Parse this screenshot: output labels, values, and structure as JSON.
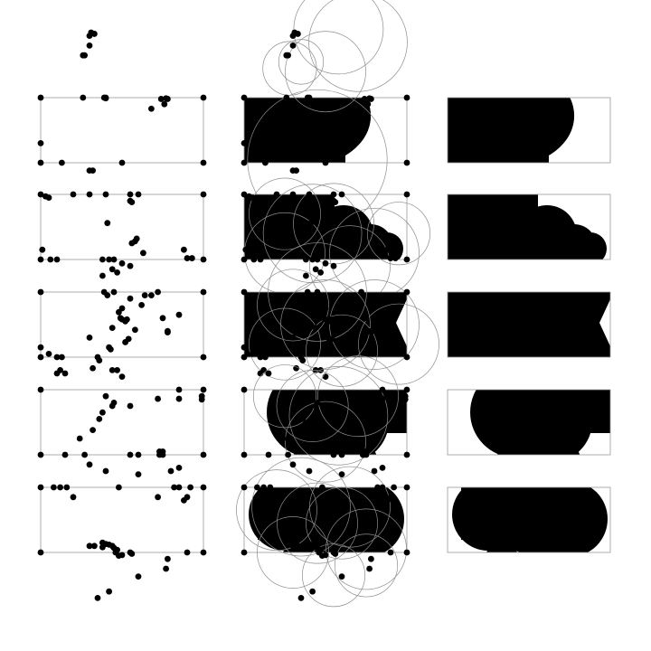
{
  "figure": {
    "colors": {
      "background": "#ffffff",
      "ink": "#000000",
      "outline": "#999999",
      "circle": "#8c8c8c"
    },
    "columns": [
      {
        "name": "scattered-points"
      },
      {
        "name": "circle-construction"
      },
      {
        "name": "filled-union"
      }
    ],
    "rows": [
      {
        "id": "row-1",
        "clip": [
          [
            [
              0.18,
              0
            ],
            [
              0.6,
              0.35
            ],
            [
              0.25,
              0.5
            ]
          ]
        ],
        "circles": [
          [
            0.45,
            0.95,
            0.78
          ],
          [
            0.5,
            -0.4,
            0.45
          ],
          [
            0.58,
            -1.05,
            0.5
          ],
          [
            0.7,
            -0.85,
            0.55
          ],
          [
            0.35,
            -0.55,
            0.25
          ],
          [
            0.28,
            -0.45,
            0.3
          ]
        ],
        "dots": [
          [
            0.3,
            -0.95
          ],
          [
            0.33,
            -0.98
          ],
          [
            0.31,
            -1.0
          ],
          [
            0.3,
            -0.8
          ],
          [
            0.27,
            -0.65
          ],
          [
            0.26,
            -0.65
          ],
          [
            0,
            0
          ],
          [
            1,
            0
          ],
          [
            0,
            1
          ],
          [
            1,
            1
          ],
          [
            0,
            0.7
          ],
          [
            0.26,
            0
          ],
          [
            0.39,
            0
          ],
          [
            0.4,
            0
          ],
          [
            0.4,
            0.01
          ],
          [
            0.74,
            0.02
          ],
          [
            0.78,
            0.02
          ],
          [
            0.76,
            0.1
          ],
          [
            0.77,
            0.01
          ],
          [
            0.68,
            0.17
          ],
          [
            0.13,
            1
          ],
          [
            0.5,
            1
          ],
          [
            0.3,
            1.12
          ],
          [
            0.32,
            1.12
          ]
        ],
        "filled": [
          [
            0,
            0,
            0.62,
            1,
            "rect"
          ],
          [
            0.45,
            0.95,
            0.78,
            0,
            "circle"
          ]
        ]
      },
      {
        "id": "row-2",
        "circles": [
          [
            0.42,
            0.6,
            0.55
          ],
          [
            0.55,
            0.45,
            0.45
          ],
          [
            0.8,
            0.9,
            0.5
          ],
          [
            0.95,
            0.6,
            0.35
          ],
          [
            0.25,
            0.3,
            0.4
          ],
          [
            0.65,
            1.1,
            0.45
          ],
          [
            0.25,
            0.9,
            0.45
          ]
        ],
        "dots": [
          [
            0,
            0
          ],
          [
            1,
            0
          ],
          [
            0,
            1
          ],
          [
            1,
            1
          ],
          [
            0.03,
            0.03
          ],
          [
            0.05,
            0.05
          ],
          [
            0.2,
            0
          ],
          [
            0.3,
            0
          ],
          [
            0.4,
            0
          ],
          [
            0.55,
            0
          ],
          [
            0.6,
            0
          ],
          [
            0.55,
            0.1
          ],
          [
            0.56,
            0.12
          ],
          [
            0.41,
            0.44
          ],
          [
            0.59,
            0.68
          ],
          [
            0.58,
            0.72
          ],
          [
            0.56,
            0.75
          ],
          [
            0.63,
            0.9
          ],
          [
            0.88,
            0.85
          ],
          [
            0.9,
            0.98
          ],
          [
            0.93,
            0.98
          ],
          [
            0.01,
            0.85
          ],
          [
            0.06,
            1
          ],
          [
            0.1,
            1
          ],
          [
            0.38,
            1
          ],
          [
            0.42,
            1.0
          ],
          [
            0.45,
            1
          ],
          [
            0.5,
            1.06
          ],
          [
            0.55,
            1.1
          ],
          [
            0.44,
            1.15
          ],
          [
            0.47,
            1.2
          ],
          [
            0.38,
            1.25
          ]
        ],
        "filled": [
          [
            0,
            0,
            1,
            1,
            "rect-notch"
          ]
        ]
      },
      {
        "id": "row-3",
        "circles": [
          [
            0.5,
            0.5,
            0.5
          ],
          [
            0.8,
            0.5,
            0.5
          ],
          [
            0.3,
            0.2,
            0.4
          ],
          [
            0.45,
            0.0,
            0.55
          ],
          [
            0.6,
            0.9,
            0.4
          ],
          [
            0.95,
            0.8,
            0.45
          ],
          [
            0.25,
            0.8,
            0.4
          ]
        ],
        "dots": [
          [
            0,
            0
          ],
          [
            1,
            0
          ],
          [
            0,
            1
          ],
          [
            1,
            1
          ],
          [
            0.39,
            0
          ],
          [
            0.41,
            0.05
          ],
          [
            0.45,
            0
          ],
          [
            0.55,
            0.1
          ],
          [
            0.64,
            0.05
          ],
          [
            0.72,
            0
          ],
          [
            0.5,
            0.25
          ],
          [
            0.48,
            0.31
          ],
          [
            0.49,
            0.4
          ],
          [
            0.52,
            0.45
          ],
          [
            0.5,
            0.42
          ],
          [
            0.53,
            0.42
          ],
          [
            0.44,
            0.55
          ],
          [
            0.62,
            0.2
          ],
          [
            0.75,
            0.4
          ],
          [
            0.85,
            0.35
          ],
          [
            0.78,
            0.6
          ],
          [
            0.78,
            0.62
          ],
          [
            0.3,
            0.7
          ],
          [
            0.42,
            0.85
          ],
          [
            0.43,
            0.88
          ],
          [
            0.52,
            0.77
          ],
          [
            0.54,
            0.72
          ],
          [
            0.58,
            0.58
          ],
          [
            0.68,
            0.05
          ],
          [
            0.0,
            0.85
          ],
          [
            0.1,
            1.0
          ],
          [
            0.13,
            1.0
          ],
          [
            0.12,
            1.2
          ],
          [
            0.1,
            1.25
          ],
          [
            0.15,
            1.25
          ],
          [
            0.35,
            1.0
          ],
          [
            0.36,
            1.05
          ],
          [
            0.32,
            1.17
          ],
          [
            0.47,
            1.2
          ],
          [
            0.5,
            1.3
          ],
          [
            0.44,
            1.2
          ],
          [
            0.05,
            0.95
          ]
        ],
        "filled": [
          [
            0,
            0,
            1,
            1,
            "rect-vnotch"
          ]
        ]
      },
      {
        "id": "row-4",
        "circles": [
          [
            0.58,
            0.4,
            0.55
          ],
          [
            0.42,
            0.25,
            0.4
          ],
          [
            0.7,
            0.1,
            0.45
          ],
          [
            0.25,
            0.1,
            0.35
          ],
          [
            0.5,
            0.8,
            0.45
          ]
        ],
        "dots": [
          [
            0,
            0
          ],
          [
            1,
            0
          ],
          [
            0,
            1
          ],
          [
            1,
            1
          ],
          [
            0.99,
            0.1
          ],
          [
            0.99,
            0.15
          ],
          [
            0.45,
            0.2
          ],
          [
            0.85,
            0.0
          ],
          [
            0.4,
            0.1
          ],
          [
            0.55,
            0.25
          ],
          [
            0.44,
            0.25
          ],
          [
            0.72,
            0.14
          ],
          [
            0.85,
            0.14
          ],
          [
            0.38,
            0.35
          ],
          [
            0.36,
            0.45
          ],
          [
            0.32,
            0.62
          ],
          [
            0.24,
            0.75
          ],
          [
            0.15,
            1.0
          ],
          [
            0.27,
            1.0
          ],
          [
            0.55,
            1
          ],
          [
            0.6,
            1
          ],
          [
            0.73,
            0.95
          ],
          [
            0.75,
            0.95
          ],
          [
            0.73,
            1.0
          ],
          [
            0.75,
            1.0
          ],
          [
            0.3,
            1.15
          ],
          [
            0.4,
            1.25
          ],
          [
            0.8,
            1.25
          ],
          [
            0.6,
            1.3
          ],
          [
            0.85,
            1.2
          ]
        ],
        "filled": [
          [
            0.16,
            0,
            1,
            1,
            "blob"
          ]
        ]
      },
      {
        "id": "row-5",
        "circles": [
          [
            0.35,
            0.3,
            0.55
          ],
          [
            0.65,
            0.3,
            0.45
          ],
          [
            0.6,
            0.55,
            0.4
          ],
          [
            0.45,
            0.55,
            0.45
          ],
          [
            0.75,
            0.95,
            0.45
          ],
          [
            0.3,
            1.0,
            0.4
          ],
          [
            0.55,
            1.35,
            0.35
          ],
          [
            0.75,
            1.2,
            0.35
          ],
          [
            0.2,
            0.35,
            0.45
          ]
        ],
        "dots": [
          [
            0,
            0
          ],
          [
            1,
            0
          ],
          [
            0,
            1
          ],
          [
            1,
            1
          ],
          [
            0.08,
            0
          ],
          [
            0.12,
            0
          ],
          [
            0.16,
            0
          ],
          [
            0.2,
            0.15
          ],
          [
            0.48,
            0.0
          ],
          [
            0.82,
            0.0
          ],
          [
            0.85,
            0.0
          ],
          [
            0.72,
            0.15
          ],
          [
            0.9,
            0.15
          ],
          [
            0.88,
            0.2
          ],
          [
            0.92,
            0
          ],
          [
            0.3,
            0.9
          ],
          [
            0.33,
            0.9
          ],
          [
            0.38,
            0.85
          ],
          [
            0.4,
            0.87
          ],
          [
            0.42,
            0.88
          ],
          [
            0.38,
            0.92
          ],
          [
            0.44,
            0.9
          ],
          [
            0.45,
            0.93
          ],
          [
            0.47,
            0.96
          ],
          [
            0.46,
            1.0
          ],
          [
            0.48,
            1.05
          ],
          [
            0.5,
            1.04
          ],
          [
            0.55,
            1.0
          ],
          [
            0.56,
            1.02
          ],
          [
            0.9,
            1.0
          ],
          [
            0.78,
            1.1
          ],
          [
            0.77,
            1.25
          ],
          [
            0.6,
            1.37
          ],
          [
            0.42,
            1.6
          ],
          [
            0.35,
            1.7
          ]
        ],
        "filled": [
          [
            0,
            0,
            1,
            1,
            "cap"
          ]
        ]
      }
    ]
  }
}
